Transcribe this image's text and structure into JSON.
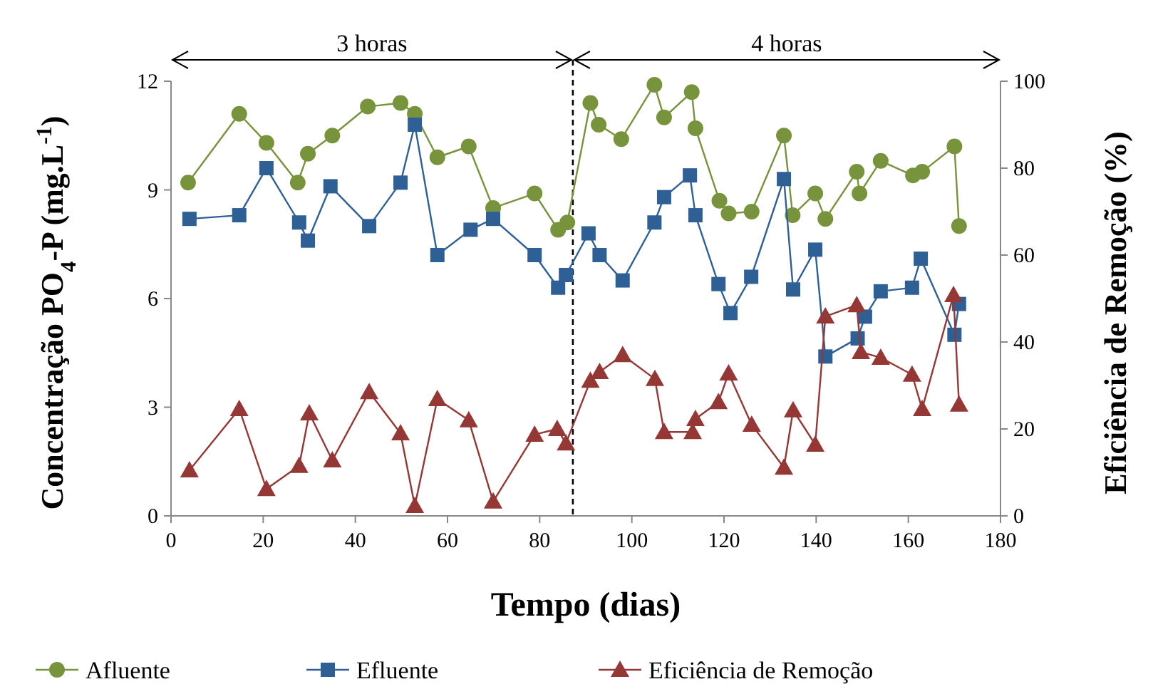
{
  "chart_data": {
    "type": "line",
    "xlabel": "Tempo (dias)",
    "ylabel": "Concentração PO$_{4}$-P  (mg.L$^{-1}$)",
    "y2label": "Eficiência de Remoção (%)",
    "xlim": [
      0,
      180
    ],
    "xticks": [
      0,
      20,
      40,
      60,
      80,
      100,
      120,
      140,
      160,
      180
    ],
    "ylim": [
      0,
      12
    ],
    "yticks": [
      0,
      3,
      6,
      9,
      12
    ],
    "y2lim": [
      0,
      100
    ],
    "y2ticks": [
      0,
      20,
      40,
      60,
      80,
      100
    ],
    "grid": false,
    "legend": "bottom",
    "ref_lines": [
      {
        "axis": "x",
        "value": 87.2,
        "line_style": "dashed",
        "color": "#000000"
      }
    ],
    "annotations": [
      "3 horas",
      "4 horas"
    ],
    "series": [
      {
        "name": "Afluente",
        "color": "#77933c",
        "marker": "circle",
        "x": [
          3.7,
          14.8,
          20.7,
          27.5,
          29.7,
          35,
          42.7,
          49.8,
          52.9,
          57.8,
          64.6,
          69.9,
          78.9,
          84,
          86,
          91,
          92.8,
          97.7,
          104.9,
          107,
          113,
          113.8,
          119,
          121,
          126,
          133,
          134.9,
          139.8,
          142,
          148.8,
          149.4,
          154,
          161,
          163,
          170,
          171
        ],
        "values": [
          9.2,
          11.1,
          10.3,
          9.2,
          10.0,
          10.5,
          11.3,
          11.4,
          11.1,
          9.9,
          10.2,
          8.5,
          8.9,
          7.9,
          8.1,
          11.4,
          10.8,
          10.4,
          11.9,
          11.0,
          11.7,
          10.7,
          8.7,
          8.35,
          8.4,
          10.5,
          8.3,
          8.9,
          8.2,
          9.5,
          8.9,
          9.8,
          9.4,
          9.5,
          10.2,
          8.0
        ]
      },
      {
        "name": "Efluente",
        "color": "#2e5f95",
        "marker": "square",
        "x": [
          4,
          14.8,
          20.7,
          27.8,
          29.7,
          34.6,
          43,
          49.8,
          52.9,
          57.8,
          65,
          69.9,
          78.9,
          84,
          85.7,
          90.6,
          93,
          98,
          104.9,
          107,
          112.6,
          113.8,
          118.8,
          121.4,
          125.9,
          133,
          135,
          139.8,
          142,
          149,
          150.6,
          154,
          160.8,
          162.7,
          170,
          171
        ],
        "values": [
          8.2,
          8.3,
          9.6,
          8.1,
          7.6,
          9.1,
          8.0,
          9.2,
          10.8,
          7.2,
          7.9,
          8.2,
          7.2,
          6.3,
          6.65,
          7.8,
          7.2,
          6.5,
          8.1,
          8.8,
          9.4,
          8.3,
          6.4,
          5.6,
          6.6,
          9.3,
          6.25,
          7.35,
          4.4,
          4.9,
          5.5,
          6.2,
          6.3,
          7.1,
          5.0,
          5.85
        ]
      },
      {
        "name": "Eficiência de Remoção",
        "color": "#953735",
        "marker": "triangle",
        "axis": "y2",
        "x": [
          4,
          14.8,
          20.7,
          27.8,
          30,
          35,
          43,
          49.8,
          52.9,
          57.8,
          64.6,
          69.9,
          78.9,
          83.8,
          85.7,
          91,
          93,
          98,
          105,
          107,
          113.2,
          113.8,
          118.8,
          121,
          126,
          133,
          135,
          139.8,
          142,
          148.8,
          149.7,
          154,
          160.8,
          163,
          169.8,
          171
        ],
        "values": [
          10.5,
          24.6,
          6.2,
          11.5,
          23.6,
          12.8,
          28.5,
          19.0,
          2.3,
          26.9,
          22.0,
          3.3,
          18.7,
          20.0,
          16.7,
          31.1,
          33.1,
          37.0,
          31.5,
          19.3,
          19.3,
          22.3,
          26.2,
          32.8,
          21.0,
          11.1,
          24.3,
          16.4,
          45.9,
          48.5,
          37.7,
          36.4,
          32.5,
          24.6,
          50.8,
          25.6
        ]
      }
    ]
  }
}
